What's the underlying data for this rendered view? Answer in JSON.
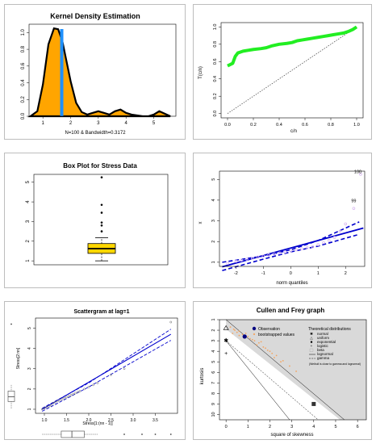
{
  "chart_data": [
    {
      "type": "area",
      "title": "Kernel Density Estimation",
      "xlabel": "N=100 & Bandwidth=0.3172",
      "ylabel": "",
      "xlim": [
        0.5,
        5.8
      ],
      "ylim": [
        0,
        1.1
      ],
      "x_ticks": [
        "1",
        "2",
        "3",
        "4",
        "5"
      ],
      "y_ticks": [
        "0.0",
        "0.2",
        "0.4",
        "0.6",
        "0.8",
        "1.0"
      ],
      "x": [
        0.55,
        0.8,
        1.0,
        1.2,
        1.4,
        1.55,
        1.7,
        1.85,
        2.0,
        2.2,
        2.4,
        2.6,
        2.8,
        3.0,
        3.2,
        3.4,
        3.6,
        3.8,
        4.0,
        4.2,
        4.4,
        4.6,
        4.8,
        5.0,
        5.2,
        5.4,
        5.6
      ],
      "y": [
        0.0,
        0.06,
        0.38,
        0.86,
        1.05,
        1.04,
        0.9,
        0.66,
        0.42,
        0.16,
        0.05,
        0.02,
        0.04,
        0.06,
        0.04,
        0.02,
        0.06,
        0.08,
        0.04,
        0.02,
        0.01,
        0.0,
        0.0,
        0.02,
        0.06,
        0.03,
        0.0
      ],
      "vline": 1.68,
      "fill_color": "#ffa500",
      "vline_color": "#1e90ff"
    },
    {
      "type": "line",
      "title": "",
      "xlabel": "c/n",
      "ylabel": "T(c/n)",
      "xlim": [
        -0.05,
        1.05
      ],
      "ylim": [
        -0.05,
        1.05
      ],
      "x_ticks": [
        "0.0",
        "0.2",
        "0.4",
        "0.6",
        "0.8",
        "1.0"
      ],
      "y_ticks": [
        "0.0",
        "0.2",
        "0.4",
        "0.6",
        "0.8",
        "1.0"
      ],
      "x": [
        0.0,
        0.04,
        0.06,
        0.08,
        0.1,
        0.12,
        0.16,
        0.2,
        0.26,
        0.3,
        0.34,
        0.4,
        0.46,
        0.5,
        0.54,
        0.58,
        0.62,
        0.66,
        0.7,
        0.74,
        0.78,
        0.82,
        0.86,
        0.9,
        0.94,
        0.97,
        1.0
      ],
      "y": [
        0.55,
        0.58,
        0.66,
        0.7,
        0.71,
        0.72,
        0.73,
        0.74,
        0.75,
        0.76,
        0.78,
        0.8,
        0.81,
        0.82,
        0.84,
        0.85,
        0.86,
        0.87,
        0.88,
        0.89,
        0.9,
        0.91,
        0.92,
        0.93,
        0.95,
        0.97,
        1.0
      ],
      "reference": "diagonal",
      "line_color": "#22ee22"
    },
    {
      "type": "box",
      "title": "Box Plot for Stress Data",
      "ylim": [
        0.8,
        5.4
      ],
      "y_ticks": [
        "1",
        "2",
        "3",
        "4",
        "5"
      ],
      "whisker_low": 1.0,
      "q1": 1.38,
      "median": 1.62,
      "q3": 1.88,
      "whisker_high": 2.18,
      "outliers": [
        2.5,
        2.8,
        2.95,
        3.45,
        3.85,
        5.25
      ],
      "box_color": "#ffd700"
    },
    {
      "type": "scatter",
      "title": "",
      "xlabel": "norm quantiles",
      "ylabel": "x",
      "xlim": [
        -2.6,
        2.7
      ],
      "ylim": [
        0.8,
        5.4
      ],
      "x_ticks": [
        "-2",
        "-1",
        "0",
        "1",
        "2"
      ],
      "y_ticks": [
        "1",
        "2",
        "3",
        "4",
        "5"
      ],
      "x": [
        -2.3,
        -2.0,
        -1.8,
        -1.6,
        -1.4,
        -1.2,
        -1.0,
        -0.8,
        -0.6,
        -0.4,
        -0.2,
        0.0,
        0.2,
        0.4,
        0.6,
        0.8,
        1.0,
        1.2,
        1.4,
        1.6,
        1.8,
        2.0,
        2.3,
        2.55
      ],
      "y": [
        0.95,
        1.05,
        1.1,
        1.15,
        1.2,
        1.25,
        1.3,
        1.35,
        1.4,
        1.45,
        1.5,
        1.55,
        1.6,
        1.65,
        1.7,
        1.75,
        1.85,
        1.95,
        2.05,
        2.2,
        2.5,
        2.85,
        3.6,
        5.25
      ],
      "labels": {
        "99": [
          2.3,
          3.9
        ],
        "100": [
          2.45,
          5.3
        ]
      },
      "fit_line": [
        [
          -2.5,
          0.78
        ],
        [
          2.65,
          2.65
        ]
      ],
      "band_upper": [
        [
          -2.5,
          1.0
        ],
        [
          -1.0,
          1.3
        ],
        [
          0.0,
          1.6
        ],
        [
          1.0,
          2.05
        ],
        [
          2.5,
          2.95
        ]
      ],
      "band_lower": [
        [
          -2.5,
          0.6
        ],
        [
          -1.0,
          1.15
        ],
        [
          0.0,
          1.5
        ],
        [
          1.0,
          1.78
        ],
        [
          2.5,
          2.35
        ]
      ],
      "line_color": "#0000cd",
      "point_color": "#d7b8f0"
    },
    {
      "type": "scatter",
      "title": "Scattergram at lag=1",
      "xlabel": "Stress[1:(nn - 1)]",
      "ylabel": "Stress[2:nn]",
      "xlim": [
        0.8,
        4.0
      ],
      "ylim": [
        0.8,
        5.5
      ],
      "x_ticks": [
        "1.0",
        "1.5",
        "2.0",
        "2.5",
        "3.0",
        "3.5"
      ],
      "y_ticks": [
        "1",
        "2",
        "3",
        "4",
        "5"
      ],
      "x": [
        0.95,
        1.0,
        1.05,
        1.1,
        1.15,
        1.2,
        1.25,
        1.3,
        1.35,
        1.4,
        1.45,
        1.5,
        1.55,
        1.6,
        1.65,
        1.7,
        1.75,
        1.8,
        1.9,
        2.0,
        2.1,
        2.2,
        2.5,
        2.8,
        3.85
      ],
      "y": [
        1.0,
        1.05,
        1.1,
        1.15,
        1.2,
        1.3,
        1.35,
        1.4,
        1.45,
        1.5,
        1.55,
        1.6,
        1.65,
        1.7,
        1.75,
        1.8,
        1.85,
        1.9,
        2.0,
        2.1,
        2.2,
        2.3,
        2.7,
        3.0,
        5.3
      ],
      "fit_line": [
        [
          0.95,
          1.0
        ],
        [
          3.85,
          4.7
        ]
      ],
      "band_upper": [
        [
          0.95,
          1.05
        ],
        [
          2.0,
          2.3
        ],
        [
          3.85,
          4.95
        ]
      ],
      "band_lower": [
        [
          0.95,
          0.9
        ],
        [
          2.0,
          2.1
        ],
        [
          3.85,
          4.4
        ]
      ],
      "line_color": "#0000cd"
    },
    {
      "type": "scatter",
      "title": "Cullen and Frey graph",
      "xlabel": "square of skewness",
      "ylabel": "kurtosis",
      "xlim": [
        -0.3,
        6.4
      ],
      "ylim": [
        1,
        10.5
      ],
      "x_ticks": [
        "0",
        "1",
        "2",
        "3",
        "4",
        "5",
        "6"
      ],
      "y_ticks": [
        "1",
        "2",
        "3",
        "4",
        "5",
        "6",
        "7",
        "8",
        "9",
        "10"
      ],
      "observation": [
        0.85,
        2.6
      ],
      "bootstrap_x": [
        0.2,
        0.35,
        0.5,
        0.6,
        0.75,
        0.9,
        1.0,
        1.2,
        1.3,
        1.5,
        1.7,
        1.9,
        2.1,
        2.3,
        2.6,
        2.9,
        0.4,
        0.8,
        1.1,
        1.4,
        1.8,
        2.2,
        3.2,
        0.3,
        0.6,
        1.6,
        2.0,
        2.5
      ],
      "bootstrap_y": [
        1.7,
        1.9,
        2.2,
        2.1,
        2.4,
        2.3,
        2.6,
        2.9,
        3.0,
        3.2,
        3.6,
        3.9,
        4.2,
        4.4,
        4.9,
        5.4,
        2.0,
        2.7,
        2.8,
        3.4,
        3.7,
        4.6,
        5.9,
        2.3,
        2.5,
        3.1,
        4.0,
        5.0
      ],
      "legend": {
        "observation": "Observation",
        "bootstrap": "bootstrapped values",
        "theoretical_title": "Theoretical distributions",
        "items": [
          "normal",
          "uniform",
          "exponential",
          "logistic",
          "beta",
          "lognormal",
          "gamma"
        ],
        "note": "(Weibull is close to gamma and lognormal)"
      }
    }
  ]
}
